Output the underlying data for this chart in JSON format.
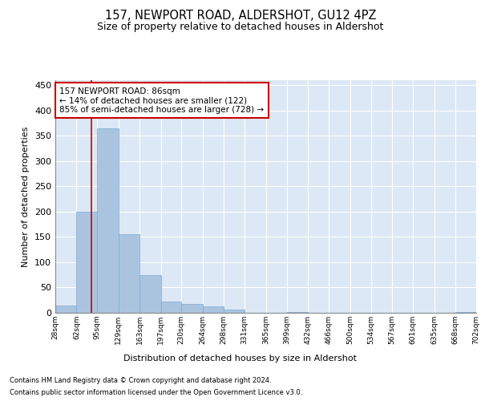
{
  "title": "157, NEWPORT ROAD, ALDERSHOT, GU12 4PZ",
  "subtitle": "Size of property relative to detached houses in Aldershot",
  "xlabel": "Distribution of detached houses by size in Aldershot",
  "ylabel": "Number of detached properties",
  "footnote1": "Contains HM Land Registry data © Crown copyright and database right 2024.",
  "footnote2": "Contains public sector information licensed under the Open Government Licence v3.0.",
  "bin_edges": [
    28,
    62,
    95,
    129,
    163,
    197,
    230,
    264,
    298,
    331,
    365,
    399,
    432,
    466,
    500,
    534,
    567,
    601,
    635,
    668,
    702
  ],
  "bar_heights": [
    15,
    200,
    365,
    155,
    75,
    22,
    18,
    13,
    7,
    0,
    0,
    2,
    0,
    0,
    0,
    0,
    0,
    0,
    0,
    2
  ],
  "bar_color": "#aac4e0",
  "bar_edgecolor": "#7baad0",
  "bg_color": "#dce8f5",
  "grid_color": "#ffffff",
  "property_size": 86,
  "annotation_text": "157 NEWPORT ROAD: 86sqm\n← 14% of detached houses are smaller (122)\n85% of semi-detached houses are larger (728) →",
  "annotation_box_color": "#ffffff",
  "annotation_box_edgecolor": "#cc0000",
  "vline_color": "#cc0000",
  "ylim": [
    0,
    460
  ],
  "yticks": [
    0,
    50,
    100,
    150,
    200,
    250,
    300,
    350,
    400,
    450
  ]
}
